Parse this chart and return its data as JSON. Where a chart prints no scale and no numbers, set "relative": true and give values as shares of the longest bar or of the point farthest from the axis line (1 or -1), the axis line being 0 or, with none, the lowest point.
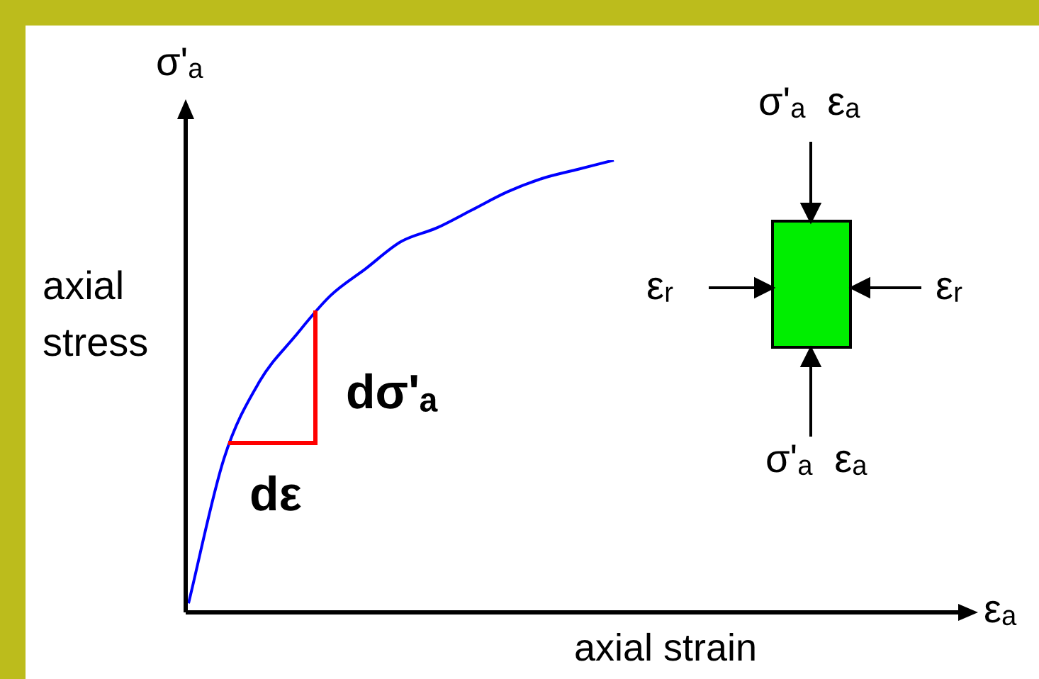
{
  "chart_data": {
    "type": "line",
    "relative": true,
    "categories": [
      null,
      null,
      null,
      null,
      null,
      null,
      null,
      null,
      null,
      null,
      null,
      null,
      null,
      null,
      null,
      null,
      null,
      null,
      null,
      null,
      null,
      null
    ],
    "series": [
      {
        "color": "#0000ff",
        "values": [
          0.02,
          0.34,
          0.51,
          0.61,
          0.7,
          0.76,
          0.82,
          0.85,
          0.89,
          0.93,
          0.96,
          0.98,
          1,
          null,
          null,
          null,
          null,
          null,
          null,
          null,
          null,
          null
        ]
      }
    ],
    "xlabel": "axial strain",
    "ylabel": "axial stress",
    "annotations": [
      "σ'ₐ",
      "εₐ",
      "dσ'ₐ",
      "dε",
      "σ'ₐ  εₐ",
      "εᵣ",
      "εᵣ",
      "σ'ₐ  εₐ"
    ],
    "legend": false,
    "marker": "none",
    "line_style": "solid"
  }
}
